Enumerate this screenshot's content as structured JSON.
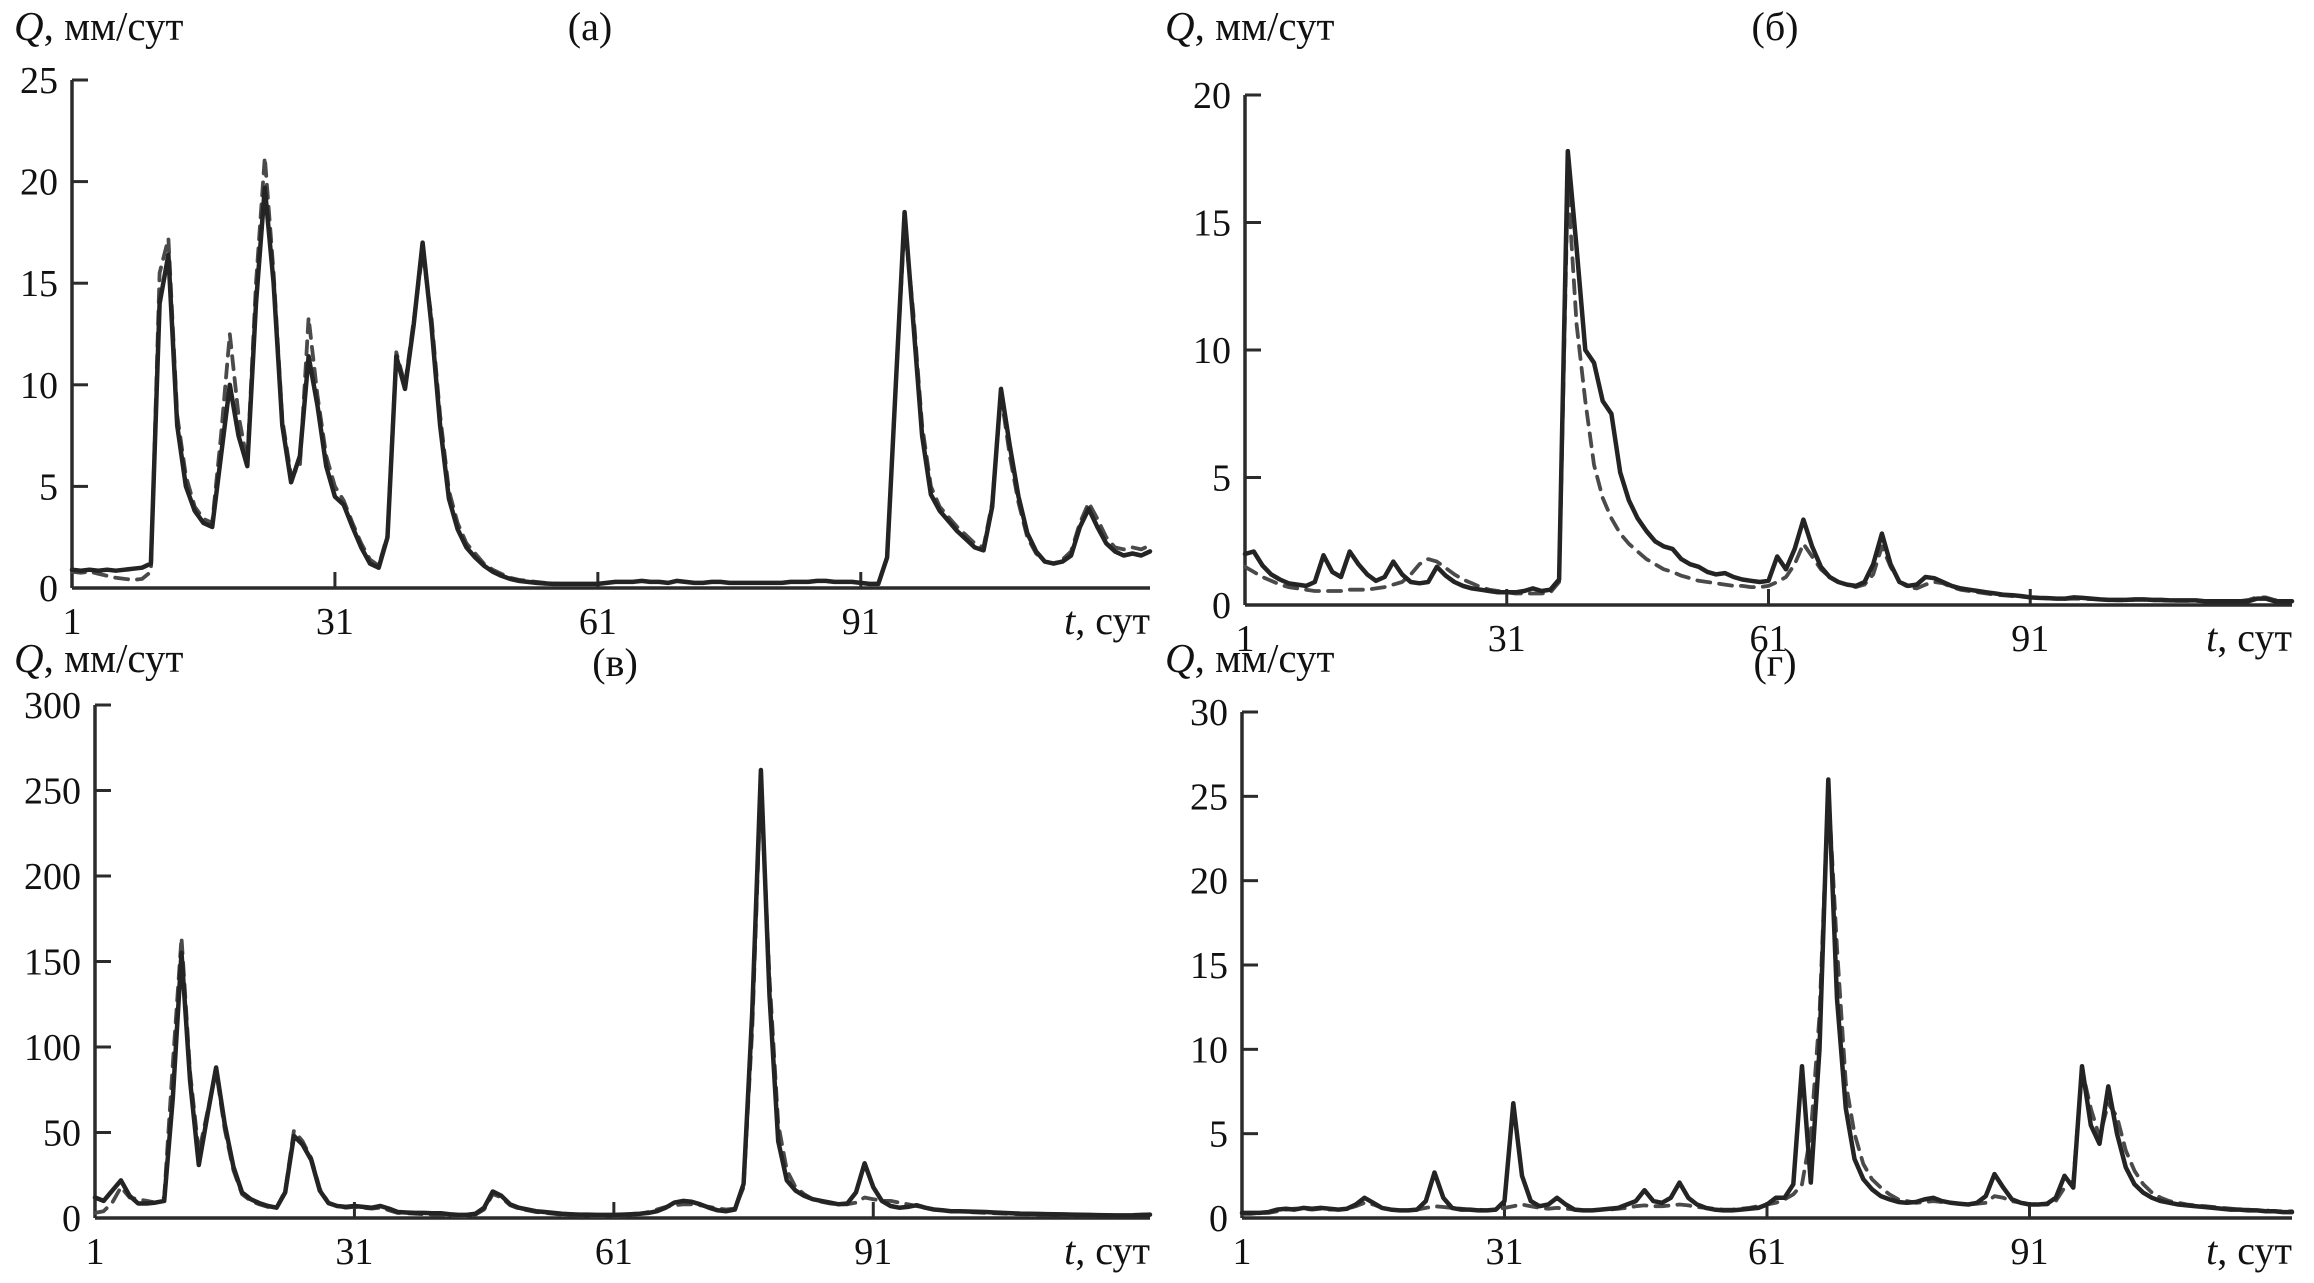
{
  "figure": {
    "background": "#ffffff",
    "description": "Four-panel daily runoff hydrograph comparison, observed (solid) vs simulated (dashed)"
  },
  "labels": {
    "y_var": "Q",
    "y_units": ", мм/сут",
    "x_var": "t",
    "x_units": ", сут"
  },
  "colors": {
    "solid_line": "#242424",
    "dashed_line": "#4a4a4a",
    "axis": "#2b2b2b",
    "text": "#111111"
  },
  "chart_data": [
    {
      "id": "a",
      "type": "line",
      "title": "(а)",
      "ylabel": "Q, мм/сут",
      "xlabel": "t, сут",
      "ylim": [
        0,
        25
      ],
      "yticks": [
        0,
        5,
        10,
        15,
        20,
        25
      ],
      "xticks": [
        1,
        31,
        61,
        91
      ],
      "x_start": 1,
      "x_end": 124,
      "x_step": 1,
      "grid": false,
      "legend": null,
      "series": [
        {
          "name": "solid",
          "style": "solid",
          "values": [
            0.9,
            0.85,
            0.9,
            0.85,
            0.9,
            0.85,
            0.9,
            0.95,
            1.0,
            1.2,
            14.0,
            16.4,
            8.0,
            5.0,
            3.8,
            3.2,
            3.0,
            6.5,
            10.0,
            7.5,
            6.0,
            14.0,
            19.7,
            15.0,
            8.0,
            5.2,
            6.5,
            11.4,
            9.0,
            6.0,
            4.5,
            4.1,
            3.0,
            2.0,
            1.2,
            1.0,
            2.5,
            11.4,
            9.8,
            13.0,
            17.0,
            13.0,
            8.0,
            4.4,
            2.9,
            2.0,
            1.5,
            1.1,
            0.8,
            0.6,
            0.45,
            0.35,
            0.3,
            0.25,
            0.22,
            0.2,
            0.2,
            0.2,
            0.2,
            0.2,
            0.2,
            0.25,
            0.3,
            0.3,
            0.3,
            0.35,
            0.3,
            0.3,
            0.25,
            0.35,
            0.3,
            0.25,
            0.25,
            0.3,
            0.3,
            0.25,
            0.25,
            0.25,
            0.25,
            0.25,
            0.25,
            0.25,
            0.3,
            0.3,
            0.3,
            0.35,
            0.35,
            0.3,
            0.3,
            0.3,
            0.25,
            0.2,
            0.2,
            1.5,
            10.0,
            18.5,
            13.0,
            7.5,
            4.6,
            3.8,
            3.3,
            2.8,
            2.4,
            2.0,
            1.85,
            4.0,
            9.8,
            7.0,
            4.5,
            2.7,
            1.8,
            1.3,
            1.2,
            1.3,
            1.6,
            3.0,
            3.9,
            3.0,
            2.2,
            1.8,
            1.6,
            1.7,
            1.6,
            1.8
          ]
        },
        {
          "name": "dashed",
          "style": "dashed",
          "values": [
            0.8,
            0.75,
            0.8,
            0.7,
            0.6,
            0.5,
            0.45,
            0.4,
            0.45,
            0.8,
            15.5,
            17.2,
            8.5,
            5.5,
            4.0,
            3.4,
            3.2,
            7.5,
            12.5,
            8.5,
            6.2,
            15.0,
            21.2,
            15.5,
            8.3,
            5.5,
            6.0,
            13.3,
            9.5,
            6.5,
            5.0,
            4.3,
            3.2,
            2.2,
            1.4,
            1.1,
            2.6,
            11.6,
            10.0,
            13.2,
            16.5,
            13.4,
            8.5,
            4.8,
            3.2,
            2.2,
            1.7,
            1.2,
            0.9,
            0.7,
            0.5,
            0.4,
            0.35,
            0.3,
            0.25,
            0.22,
            0.2,
            0.2,
            0.2,
            0.2,
            0.2,
            0.25,
            0.3,
            0.3,
            0.3,
            0.35,
            0.3,
            0.3,
            0.25,
            0.35,
            0.3,
            0.25,
            0.25,
            0.3,
            0.3,
            0.25,
            0.25,
            0.25,
            0.25,
            0.25,
            0.25,
            0.25,
            0.3,
            0.3,
            0.3,
            0.35,
            0.35,
            0.3,
            0.3,
            0.3,
            0.25,
            0.2,
            0.2,
            1.5,
            10.0,
            18.0,
            13.5,
            8.0,
            5.0,
            4.0,
            3.5,
            3.0,
            2.6,
            2.2,
            2.0,
            4.2,
            9.5,
            6.5,
            4.2,
            2.5,
            1.7,
            1.3,
            1.2,
            1.4,
            1.8,
            3.2,
            4.2,
            3.4,
            2.5,
            2.0,
            1.9,
            2.0,
            1.9,
            2.1
          ]
        }
      ]
    },
    {
      "id": "b",
      "type": "line",
      "title": "(б)",
      "ylabel": "Q, мм/сут",
      "xlabel": "t, сут",
      "ylim": [
        0,
        20
      ],
      "yticks": [
        0,
        5,
        10,
        15,
        20
      ],
      "xticks": [
        1,
        31,
        61,
        91
      ],
      "x_start": 1,
      "x_end": 121,
      "x_step": 1,
      "grid": false,
      "legend": null,
      "series": [
        {
          "name": "solid",
          "style": "solid",
          "values": [
            2.0,
            2.1,
            1.55,
            1.2,
            1.0,
            0.85,
            0.8,
            0.75,
            0.9,
            1.95,
            1.3,
            1.1,
            2.1,
            1.6,
            1.2,
            0.95,
            1.1,
            1.7,
            1.2,
            0.9,
            0.85,
            0.9,
            1.5,
            1.15,
            0.9,
            0.75,
            0.65,
            0.6,
            0.55,
            0.5,
            0.5,
            0.5,
            0.55,
            0.65,
            0.55,
            0.6,
            1.0,
            17.8,
            14.0,
            10.0,
            9.5,
            8.0,
            7.5,
            5.2,
            4.1,
            3.4,
            2.9,
            2.5,
            2.3,
            2.2,
            1.8,
            1.6,
            1.5,
            1.3,
            1.2,
            1.25,
            1.1,
            1.0,
            0.95,
            0.9,
            0.95,
            1.9,
            1.4,
            2.2,
            3.35,
            2.3,
            1.5,
            1.1,
            0.9,
            0.8,
            0.75,
            0.9,
            1.6,
            2.8,
            1.6,
            0.9,
            0.75,
            0.8,
            1.1,
            1.05,
            0.9,
            0.75,
            0.65,
            0.6,
            0.55,
            0.5,
            0.45,
            0.4,
            0.38,
            0.35,
            0.3,
            0.28,
            0.27,
            0.25,
            0.25,
            0.3,
            0.28,
            0.25,
            0.22,
            0.2,
            0.2,
            0.2,
            0.22,
            0.22,
            0.2,
            0.2,
            0.18,
            0.18,
            0.18,
            0.18,
            0.15,
            0.15,
            0.15,
            0.15,
            0.15,
            0.15,
            0.25,
            0.25,
            0.15,
            0.15,
            0.15
          ]
        },
        {
          "name": "dashed",
          "style": "dashed",
          "values": [
            1.5,
            1.3,
            1.1,
            0.95,
            0.8,
            0.7,
            0.65,
            0.6,
            0.55,
            0.55,
            0.55,
            0.55,
            0.6,
            0.6,
            0.6,
            0.65,
            0.7,
            0.8,
            0.9,
            1.2,
            1.6,
            1.8,
            1.7,
            1.45,
            1.2,
            1.0,
            0.85,
            0.7,
            0.6,
            0.55,
            0.5,
            0.45,
            0.45,
            0.45,
            0.45,
            0.5,
            0.9,
            16.5,
            11.0,
            8.0,
            5.5,
            4.2,
            3.4,
            2.8,
            2.4,
            2.1,
            1.8,
            1.6,
            1.4,
            1.3,
            1.15,
            1.05,
            0.95,
            0.9,
            0.85,
            0.8,
            0.75,
            0.75,
            0.7,
            0.7,
            0.75,
            0.9,
            1.1,
            1.6,
            2.4,
            1.9,
            1.4,
            1.1,
            0.9,
            0.8,
            0.7,
            0.8,
            1.2,
            2.3,
            1.5,
            0.9,
            0.7,
            0.65,
            0.8,
            0.9,
            0.85,
            0.7,
            0.6,
            0.55,
            0.5,
            0.45,
            0.4,
            0.38,
            0.35,
            0.33,
            0.3,
            0.28,
            0.26,
            0.25,
            0.24,
            0.25,
            0.24,
            0.23,
            0.22,
            0.2,
            0.18,
            0.18,
            0.2,
            0.2,
            0.18,
            0.18,
            0.16,
            0.16,
            0.16,
            0.16,
            0.15,
            0.15,
            0.15,
            0.15,
            0.15,
            0.2,
            0.3,
            0.3,
            0.2,
            0.15,
            0.15
          ]
        }
      ]
    },
    {
      "id": "v",
      "type": "line",
      "title": "(в)",
      "ylabel": "Q, мм/сут",
      "xlabel": "t, сут",
      "ylim": [
        0,
        300
      ],
      "yticks": [
        0,
        50,
        100,
        150,
        200,
        250,
        300
      ],
      "xticks": [
        1,
        31,
        61,
        91
      ],
      "x_start": 1,
      "x_end": 123,
      "x_step": 1,
      "grid": false,
      "legend": null,
      "series": [
        {
          "name": "solid",
          "style": "solid",
          "values": [
            12,
            10,
            16,
            22,
            13,
            8.5,
            8.5,
            9,
            10,
            70,
            155,
            80,
            31,
            60,
            88,
            55,
            30,
            15,
            11,
            8.7,
            7,
            6,
            15,
            48,
            43,
            34,
            16,
            8.7,
            7,
            6.5,
            7,
            6.5,
            6,
            7,
            5.5,
            3.5,
            3.2,
            3,
            3,
            2.8,
            2.8,
            2.2,
            1.8,
            1.8,
            2.5,
            6,
            15.5,
            13,
            8,
            6,
            5,
            4,
            3.5,
            3,
            2.5,
            2.2,
            2,
            2,
            1.8,
            1.8,
            1.8,
            2,
            2.2,
            2.5,
            3,
            4,
            6,
            9,
            10,
            9.5,
            8,
            6,
            4.5,
            4,
            5,
            20,
            120,
            262,
            130,
            45,
            22,
            16,
            13,
            11,
            10,
            9,
            8,
            8.5,
            15,
            32,
            18,
            10,
            7,
            6,
            6.5,
            7.5,
            6,
            5,
            4.5,
            4,
            4,
            3.8,
            3.6,
            3.5,
            3.2,
            3,
            2.8,
            2.6,
            2.5,
            2.4,
            2.3,
            2.2,
            2.1,
            2,
            1.9,
            1.8,
            1.7,
            1.6,
            1.5,
            1.5,
            1.6,
            1.8,
            2
          ]
        },
        {
          "name": "dashed",
          "style": "dashed",
          "values": [
            3,
            4,
            9,
            18,
            12,
            11,
            10,
            9,
            12,
            90,
            164,
            85,
            38,
            62,
            86,
            52,
            28,
            14,
            10,
            8,
            6.5,
            5.8,
            16,
            51,
            45,
            35,
            17,
            9,
            7,
            6,
            6.5,
            6,
            5.5,
            6,
            4.5,
            3,
            2.8,
            2.5,
            2.2,
            2,
            2,
            1.5,
            1.2,
            1,
            2,
            5,
            14,
            12,
            7.5,
            5.5,
            4.5,
            3.5,
            3,
            2.5,
            2,
            1.8,
            1.5,
            1.3,
            1.2,
            1.2,
            1.3,
            1.5,
            1.8,
            2.5,
            3.5,
            5,
            6.5,
            7.5,
            8,
            8,
            7.5,
            6.5,
            5.5,
            5,
            5.5,
            18,
            110,
            255,
            140,
            55,
            28,
            18,
            14,
            11,
            9.5,
            8.5,
            8,
            8,
            9,
            12,
            11,
            10,
            10,
            9,
            8,
            7,
            6,
            5,
            4.5,
            4,
            3.8,
            3.5,
            3.2,
            3,
            2.8,
            2.6,
            2.4,
            2.2,
            2.1,
            2,
            1.9,
            1.8,
            1.7,
            1.6,
            1.5,
            1.5,
            1.4,
            1.4,
            1.3,
            1.3,
            1.4,
            1.6,
            1.8
          ]
        }
      ]
    },
    {
      "id": "g",
      "type": "line",
      "title": "(г)",
      "ylabel": "Q, мм/сут",
      "xlabel": "t, сут",
      "ylim": [
        0,
        30
      ],
      "yticks": [
        0,
        5,
        10,
        15,
        20,
        25,
        30
      ],
      "xticks": [
        1,
        31,
        61,
        91
      ],
      "x_start": 1,
      "x_end": 121,
      "x_step": 1,
      "grid": false,
      "legend": null,
      "series": [
        {
          "name": "solid",
          "style": "solid",
          "values": [
            0.3,
            0.3,
            0.3,
            0.35,
            0.5,
            0.55,
            0.5,
            0.6,
            0.55,
            0.6,
            0.55,
            0.5,
            0.55,
            0.8,
            1.2,
            0.9,
            0.6,
            0.5,
            0.45,
            0.45,
            0.5,
            1.0,
            2.7,
            1.2,
            0.6,
            0.5,
            0.5,
            0.45,
            0.45,
            0.5,
            1.0,
            6.8,
            2.5,
            1.0,
            0.7,
            0.8,
            1.2,
            0.8,
            0.5,
            0.45,
            0.45,
            0.5,
            0.55,
            0.6,
            0.8,
            1.0,
            1.65,
            1.0,
            0.9,
            1.2,
            2.1,
            1.2,
            0.8,
            0.6,
            0.5,
            0.45,
            0.45,
            0.5,
            0.55,
            0.6,
            0.8,
            1.2,
            1.2,
            2.0,
            9.0,
            2.1,
            10.0,
            26.0,
            13.0,
            6.5,
            3.5,
            2.3,
            1.7,
            1.3,
            1.1,
            0.95,
            0.9,
            0.95,
            1.1,
            1.2,
            1.0,
            0.9,
            0.85,
            0.8,
            0.9,
            1.3,
            2.6,
            1.8,
            1.1,
            0.9,
            0.8,
            0.8,
            0.85,
            1.2,
            2.5,
            1.8,
            9.0,
            5.5,
            4.4,
            7.8,
            5.0,
            3.0,
            2.0,
            1.5,
            1.2,
            1.0,
            0.9,
            0.8,
            0.75,
            0.7,
            0.65,
            0.6,
            0.55,
            0.5,
            0.5,
            0.45,
            0.45,
            0.4,
            0.4,
            0.35,
            0.35
          ]
        },
        {
          "name": "dashed",
          "style": "dashed",
          "values": [
            0.25,
            0.25,
            0.3,
            0.3,
            0.4,
            0.5,
            0.55,
            0.55,
            0.5,
            0.55,
            0.5,
            0.5,
            0.55,
            0.7,
            0.9,
            0.8,
            0.6,
            0.5,
            0.45,
            0.45,
            0.5,
            0.6,
            0.7,
            0.65,
            0.6,
            0.55,
            0.5,
            0.5,
            0.45,
            0.5,
            0.6,
            0.7,
            0.8,
            0.7,
            0.6,
            0.55,
            0.6,
            0.55,
            0.5,
            0.45,
            0.45,
            0.5,
            0.5,
            0.55,
            0.6,
            0.7,
            0.75,
            0.7,
            0.7,
            0.75,
            0.8,
            0.75,
            0.65,
            0.6,
            0.55,
            0.5,
            0.5,
            0.55,
            0.6,
            0.7,
            0.8,
            0.9,
            1.1,
            1.4,
            2.0,
            5.0,
            12.0,
            25.5,
            16.0,
            8.0,
            5.0,
            3.2,
            2.3,
            1.8,
            1.4,
            1.1,
            1.0,
            0.9,
            0.95,
            1.0,
            0.95,
            0.9,
            0.85,
            0.8,
            0.85,
            0.9,
            1.3,
            1.2,
            1.0,
            0.9,
            0.85,
            0.8,
            0.8,
            1.0,
            1.8,
            2.2,
            8.8,
            6.5,
            4.8,
            6.8,
            6.0,
            4.0,
            2.8,
            2.0,
            1.5,
            1.2,
            1.0,
            0.9,
            0.8,
            0.75,
            0.7,
            0.65,
            0.6,
            0.55,
            0.5,
            0.5,
            0.45,
            0.45,
            0.4,
            0.4,
            0.4
          ]
        }
      ]
    }
  ]
}
